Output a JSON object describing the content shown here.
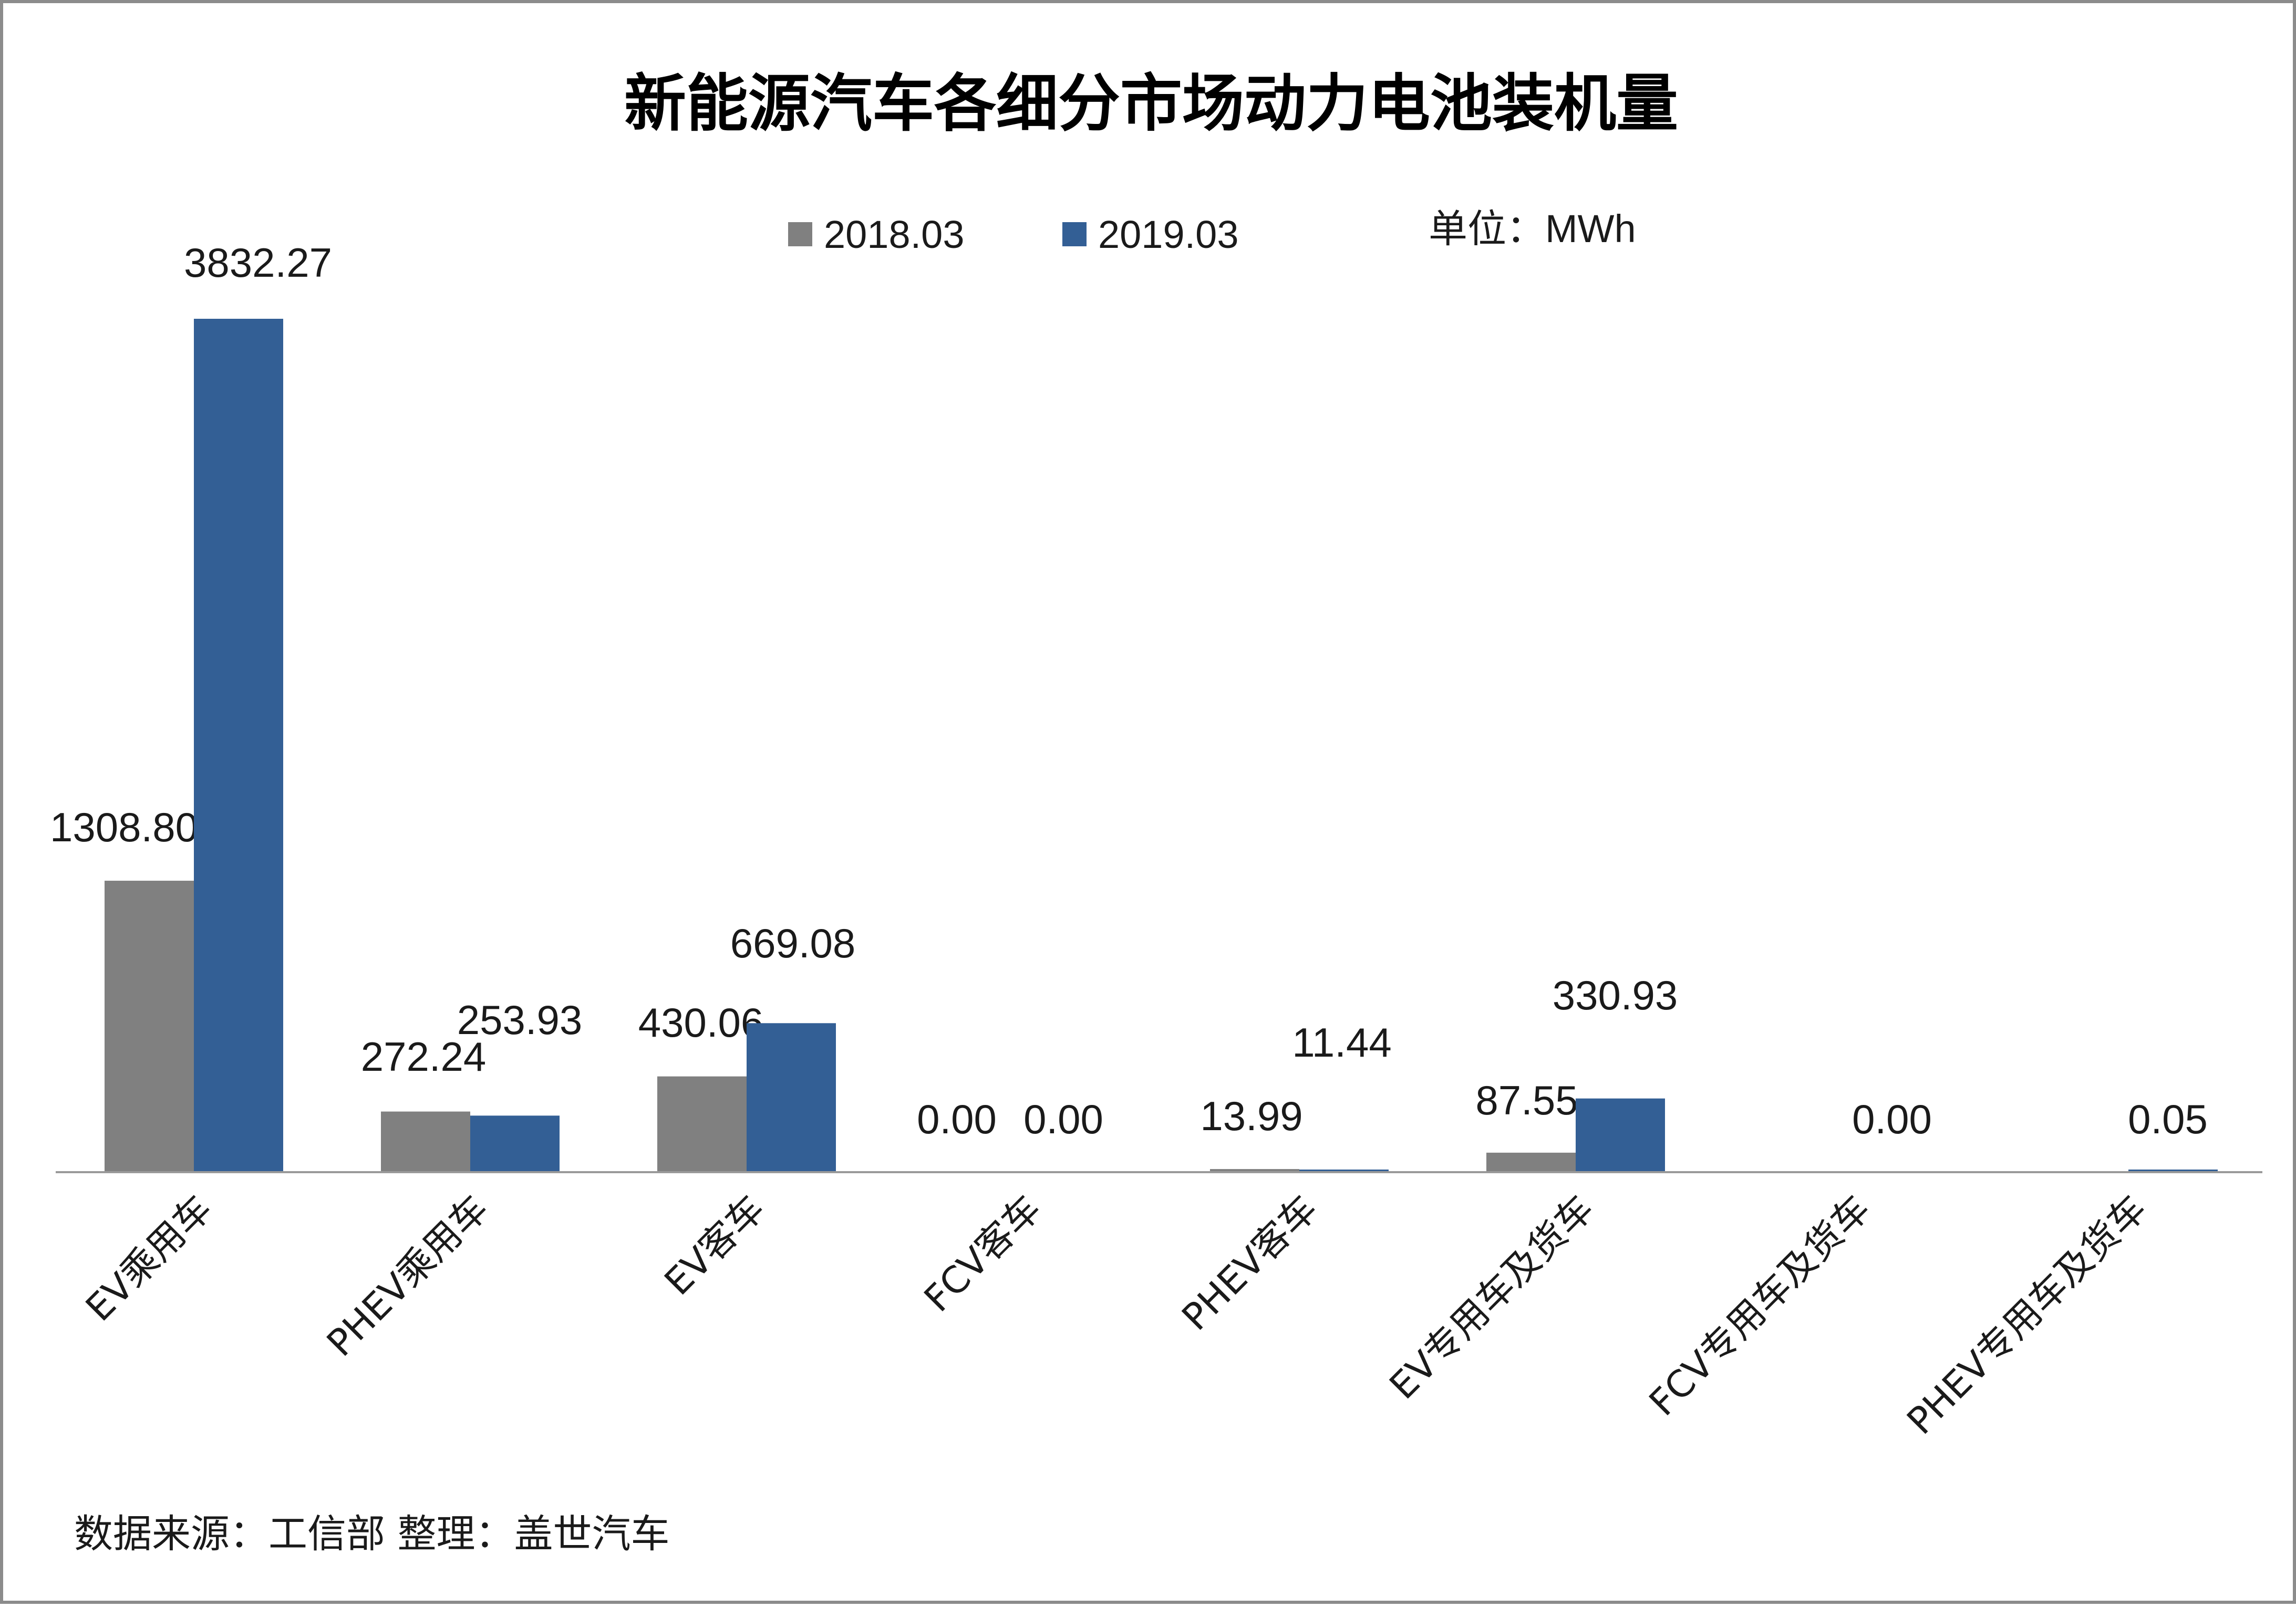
{
  "title": "新能源汽车各细分市场动力电池装机量",
  "unit": "单位：MWh",
  "source": "数据来源：工信部   整理：盖世汽车",
  "colors": {
    "s2018": "#808080",
    "s2019": "#335f95",
    "axis": "#9a9a9a"
  },
  "chart_data": {
    "type": "bar",
    "title": "新能源汽车各细分市场动力电池装机量",
    "xlabel": "",
    "ylabel": "",
    "ylim": [
      0,
      4000
    ],
    "grid": false,
    "legend_position": "top-center",
    "categories": [
      "EV乘用车",
      "PHEV乘用车",
      "EV客车",
      "FCV客车",
      "PHEV客车",
      "EV专用车及货车",
      "FCV专用车及货车",
      "PHEV专用车及货车"
    ],
    "series": [
      {
        "name": "2018.03",
        "values": [
          1308.8,
          272.24,
          430.06,
          0.0,
          13.99,
          87.55,
          null,
          null
        ],
        "labels": [
          "1308.80",
          "272.24",
          "430.06",
          "0.00",
          "13.99",
          "87.55",
          "",
          ""
        ]
      },
      {
        "name": "2019.03",
        "values": [
          3832.27,
          253.93,
          669.08,
          0.0,
          11.44,
          330.93,
          0.0,
          0.05
        ],
        "labels": [
          "3832.27",
          "253.93",
          "669.08",
          "0.00",
          "11.44",
          "330.93",
          "0.00",
          "0.05"
        ]
      }
    ]
  }
}
